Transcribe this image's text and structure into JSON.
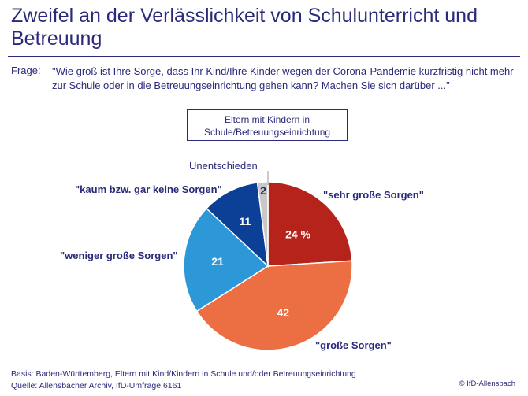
{
  "title": "Zweifel an der Verlässlichkeit von Schulunterricht und Betreuung",
  "question": {
    "label": "Frage:",
    "text": "\"Wie groß ist Ihre Sorge, dass Ihr Kind/Ihre Kinder wegen der Corona-Pandemie kurzfristig nicht mehr zur Schule oder in die Betreuungseinrichtung gehen kann? Machen Sie sich darüber ...\""
  },
  "group_label": "Eltern mit Kindern in Schule/Betreuungseinrichtung",
  "chart_data": {
    "type": "pie",
    "title": "",
    "unit": "%",
    "slices": [
      {
        "label": "\"sehr große Sorgen\"",
        "value": 24,
        "value_text": "24 %",
        "color": "#b5231a"
      },
      {
        "label": "\"große Sorgen\"",
        "value": 42,
        "value_text": "42",
        "color": "#ec6f43"
      },
      {
        "label": "\"weniger große Sorgen\"",
        "value": 21,
        "value_text": "21",
        "color": "#2c98d7"
      },
      {
        "label": "\"kaum bzw. gar keine Sorgen\"",
        "value": 11,
        "value_text": "11",
        "color": "#0c3f96"
      },
      {
        "label": "Unentschieden",
        "value": 2,
        "value_text": "2",
        "color": "#c8c8c8"
      }
    ]
  },
  "footer": {
    "basis": "Basis: Baden-Württemberg, Eltern mit Kind/Kindern in Schule und/oder Betreuungseinrichtung",
    "source": "Quelle: Allensbacher Archiv, IfD-Umfrage 6161",
    "copyright": "© IfD-Allensbach"
  }
}
